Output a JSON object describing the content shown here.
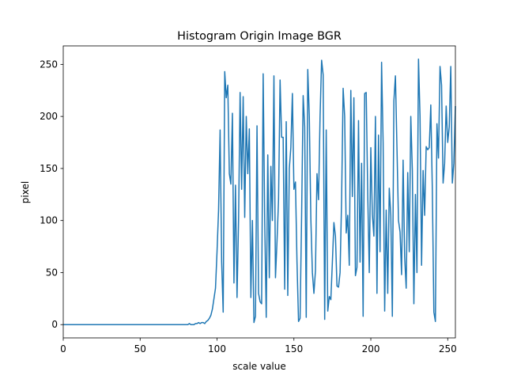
{
  "chart_data": {
    "type": "line",
    "title": "Histogram Origin Image BGR",
    "x_label": "scale value",
    "y_label": "pixel",
    "color": "#1f77b4",
    "x": [
      0,
      1,
      2,
      3,
      4,
      5,
      6,
      7,
      8,
      9,
      10,
      11,
      12,
      13,
      14,
      15,
      16,
      17,
      18,
      19,
      20,
      21,
      22,
      23,
      24,
      25,
      26,
      27,
      28,
      29,
      30,
      31,
      32,
      33,
      34,
      35,
      36,
      37,
      38,
      39,
      40,
      41,
      42,
      43,
      44,
      45,
      46,
      47,
      48,
      49,
      50,
      51,
      52,
      53,
      54,
      55,
      56,
      57,
      58,
      59,
      60,
      61,
      62,
      63,
      64,
      65,
      66,
      67,
      68,
      69,
      70,
      71,
      72,
      73,
      74,
      75,
      76,
      77,
      78,
      79,
      80,
      81,
      82,
      83,
      84,
      85,
      86,
      87,
      88,
      89,
      90,
      91,
      92,
      93,
      94,
      95,
      96,
      97,
      98,
      99,
      100,
      101,
      102,
      103,
      104,
      105,
      106,
      107,
      108,
      109,
      110,
      111,
      112,
      113,
      114,
      115,
      116,
      117,
      118,
      119,
      120,
      121,
      122,
      123,
      124,
      125,
      126,
      127,
      128,
      129,
      130,
      131,
      132,
      133,
      134,
      135,
      136,
      137,
      138,
      139,
      140,
      141,
      142,
      143,
      144,
      145,
      146,
      147,
      148,
      149,
      150,
      151,
      152,
      153,
      154,
      155,
      156,
      157,
      158,
      159,
      160,
      161,
      162,
      163,
      164,
      165,
      166,
      167,
      168,
      169,
      170,
      171,
      172,
      173,
      174,
      175,
      176,
      177,
      178,
      179,
      180,
      181,
      182,
      183,
      184,
      185,
      186,
      187,
      188,
      189,
      190,
      191,
      192,
      193,
      194,
      195,
      196,
      197,
      198,
      199,
      200,
      201,
      202,
      203,
      204,
      205,
      206,
      207,
      208,
      209,
      210,
      211,
      212,
      213,
      214,
      215,
      216,
      217,
      218,
      219,
      220,
      221,
      222,
      223,
      224,
      225,
      226,
      227,
      228,
      229,
      230,
      231,
      232,
      233,
      234,
      235,
      236,
      237,
      238,
      239,
      240,
      241,
      242,
      243,
      244,
      245,
      246,
      247,
      248,
      249,
      250,
      251,
      252,
      253,
      254,
      255
    ],
    "values": [
      0,
      0,
      0,
      0,
      0,
      0,
      0,
      0,
      0,
      0,
      0,
      0,
      0,
      0,
      0,
      0,
      0,
      0,
      0,
      0,
      0,
      0,
      0,
      0,
      0,
      0,
      0,
      0,
      0,
      0,
      0,
      0,
      0,
      0,
      0,
      0,
      0,
      0,
      0,
      0,
      0,
      0,
      0,
      0,
      0,
      0,
      0,
      0,
      0,
      0,
      0,
      0,
      0,
      0,
      0,
      0,
      0,
      0,
      0,
      0,
      0,
      0,
      0,
      0,
      0,
      0,
      0,
      0,
      0,
      0,
      0,
      0,
      0,
      0,
      0,
      0,
      0,
      0,
      0,
      0,
      0,
      0,
      1,
      0,
      0,
      0,
      1,
      1,
      2,
      1,
      2,
      2,
      1,
      3,
      4,
      6,
      9,
      15,
      25,
      35,
      70,
      110,
      187,
      60,
      12,
      243,
      218,
      230,
      145,
      135,
      203,
      40,
      134,
      26,
      100,
      223,
      130,
      219,
      103,
      200,
      145,
      188,
      26,
      100,
      2,
      8,
      191,
      30,
      22,
      20,
      241,
      100,
      7,
      163,
      45,
      152,
      100,
      239,
      45,
      80,
      120,
      235,
      180,
      180,
      34,
      195,
      28,
      150,
      170,
      222,
      130,
      137,
      60,
      3,
      6,
      105,
      220,
      190,
      7,
      245,
      200,
      102,
      50,
      30,
      52,
      145,
      120,
      200,
      254,
      240,
      5,
      187,
      13,
      27,
      24,
      60,
      98,
      85,
      37,
      36,
      50,
      120,
      227,
      200,
      88,
      105,
      57,
      225,
      123,
      218,
      47,
      55,
      196,
      60,
      155,
      8,
      222,
      223,
      125,
      50,
      170,
      106,
      85,
      200,
      30,
      182,
      70,
      252,
      175,
      13,
      110,
      30,
      131,
      105,
      8,
      215,
      239,
      170,
      100,
      89,
      48,
      158,
      65,
      35,
      146,
      70,
      200,
      148,
      20,
      125,
      50,
      255,
      200,
      57,
      148,
      105,
      171,
      168,
      170,
      211,
      130,
      12,
      3,
      193,
      160,
      248,
      230,
      136,
      155,
      210,
      175,
      190,
      248,
      136,
      155,
      210
    ],
    "xlim": [
      0,
      255
    ],
    "ylim": [
      -12.75,
      267.75
    ],
    "xticks": [
      0,
      50,
      100,
      150,
      200,
      250
    ],
    "yticks": [
      0,
      50,
      100,
      150,
      200,
      250
    ]
  }
}
